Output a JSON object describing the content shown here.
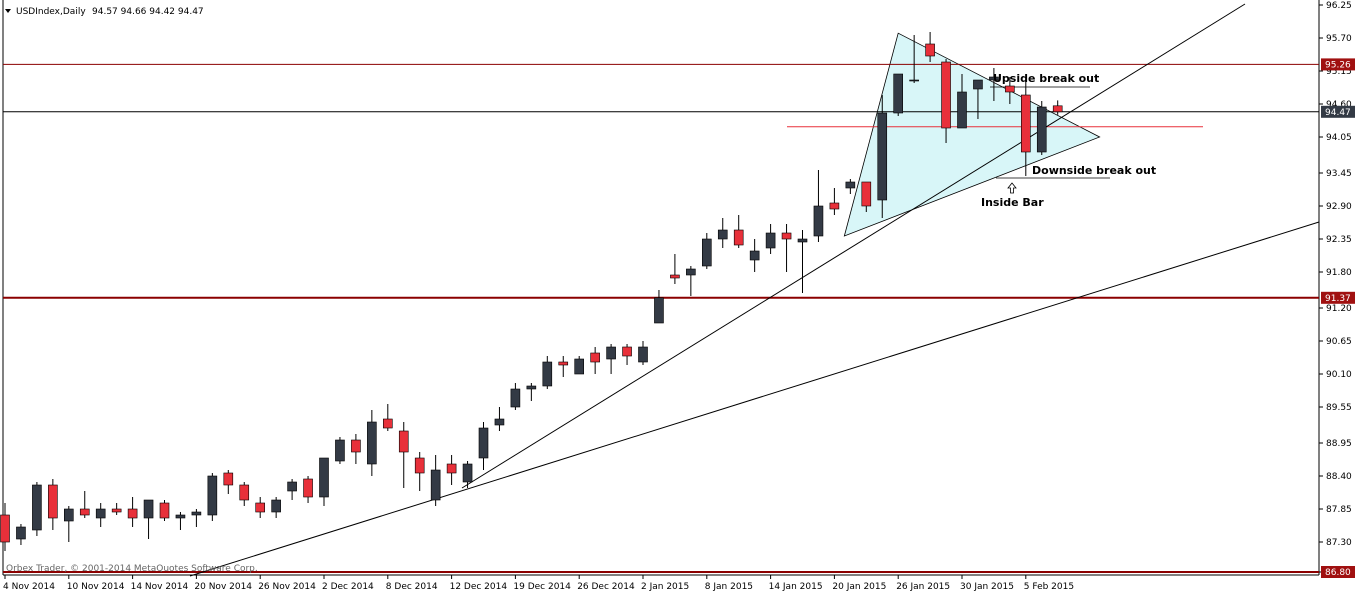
{
  "header": {
    "symbol": "USDIndex,Daily",
    "ohlc": "94.57 94.66 94.42 94.47"
  },
  "copyright": "Orbex Trader, © 2001-2014 MetaQuotes Software Corp.",
  "colors": {
    "bull": "#333a45",
    "bear": "#e8303a",
    "triangle_fill": "#d8f6f8",
    "level_line": "#8b0000",
    "price_label_bg": "#a01010",
    "current_label_bg": "#333a45"
  },
  "chart_data": {
    "type": "candlestick",
    "ylim": [
      86.75,
      96.25
    ],
    "y_ticks": [
      "96.25",
      "95.70",
      "95.15",
      "94.60",
      "94.05",
      "93.45",
      "92.90",
      "92.35",
      "91.80",
      "91.20",
      "90.65",
      "90.10",
      "89.55",
      "88.95",
      "88.40",
      "87.85",
      "87.30",
      "86.80"
    ],
    "x_labels": [
      "4 Nov 2014",
      "10 Nov 2014",
      "14 Nov 2014",
      "20 Nov 2014",
      "26 Nov 2014",
      "2 Dec 2014",
      "8 Dec 2014",
      "12 Dec 2014",
      "19 Dec 2014",
      "26 Dec 2014",
      "2 Jan 2015",
      "8 Jan 2015",
      "14 Jan 2015",
      "20 Jan 2015",
      "26 Jan 2015",
      "30 Jan 2015",
      "5 Feb 2015"
    ],
    "candles": [
      {
        "o": 87.75,
        "h": 87.95,
        "l": 87.15,
        "c": 87.3
      },
      {
        "o": 87.35,
        "h": 87.6,
        "l": 87.25,
        "c": 87.55
      },
      {
        "o": 87.5,
        "h": 88.3,
        "l": 87.4,
        "c": 88.25
      },
      {
        "o": 88.25,
        "h": 88.35,
        "l": 87.5,
        "c": 87.7
      },
      {
        "o": 87.65,
        "h": 87.9,
        "l": 87.3,
        "c": 87.85
      },
      {
        "o": 87.85,
        "h": 88.15,
        "l": 87.7,
        "c": 87.75
      },
      {
        "o": 87.7,
        "h": 87.95,
        "l": 87.55,
        "c": 87.85
      },
      {
        "o": 87.85,
        "h": 87.95,
        "l": 87.75,
        "c": 87.8
      },
      {
        "o": 87.85,
        "h": 88.05,
        "l": 87.55,
        "c": 87.7
      },
      {
        "o": 87.7,
        "h": 88.0,
        "l": 87.35,
        "c": 88.0
      },
      {
        "o": 87.95,
        "h": 88.0,
        "l": 87.65,
        "c": 87.7
      },
      {
        "o": 87.7,
        "h": 87.8,
        "l": 87.5,
        "c": 87.75
      },
      {
        "o": 87.75,
        "h": 87.85,
        "l": 87.55,
        "c": 87.8
      },
      {
        "o": 87.75,
        "h": 88.45,
        "l": 87.65,
        "c": 88.4
      },
      {
        "o": 88.45,
        "h": 88.5,
        "l": 88.1,
        "c": 88.25
      },
      {
        "o": 88.25,
        "h": 88.3,
        "l": 87.9,
        "c": 88.0
      },
      {
        "o": 87.95,
        "h": 88.05,
        "l": 87.7,
        "c": 87.8
      },
      {
        "o": 87.8,
        "h": 88.05,
        "l": 87.7,
        "c": 88.0
      },
      {
        "o": 88.15,
        "h": 88.35,
        "l": 88.0,
        "c": 88.3
      },
      {
        "o": 88.35,
        "h": 88.4,
        "l": 87.95,
        "c": 88.05
      },
      {
        "o": 88.05,
        "h": 88.7,
        "l": 87.9,
        "c": 88.7
      },
      {
        "o": 88.65,
        "h": 89.05,
        "l": 88.6,
        "c": 89.0
      },
      {
        "o": 89.0,
        "h": 89.1,
        "l": 88.6,
        "c": 88.8
      },
      {
        "o": 88.6,
        "h": 89.5,
        "l": 88.4,
        "c": 89.3
      },
      {
        "o": 89.35,
        "h": 89.6,
        "l": 89.15,
        "c": 89.2
      },
      {
        "o": 89.15,
        "h": 89.3,
        "l": 88.2,
        "c": 88.8
      },
      {
        "o": 88.7,
        "h": 88.8,
        "l": 88.15,
        "c": 88.45
      },
      {
        "o": 88.0,
        "h": 88.75,
        "l": 87.9,
        "c": 88.5
      },
      {
        "o": 88.6,
        "h": 88.75,
        "l": 88.25,
        "c": 88.45
      },
      {
        "o": 88.3,
        "h": 88.65,
        "l": 88.2,
        "c": 88.6
      },
      {
        "o": 88.7,
        "h": 89.3,
        "l": 88.5,
        "c": 89.2
      },
      {
        "o": 89.25,
        "h": 89.55,
        "l": 89.15,
        "c": 89.35
      },
      {
        "o": 89.55,
        "h": 89.95,
        "l": 89.5,
        "c": 89.85
      },
      {
        "o": 89.85,
        "h": 89.95,
        "l": 89.65,
        "c": 89.9
      },
      {
        "o": 89.9,
        "h": 90.4,
        "l": 89.85,
        "c": 90.3
      },
      {
        "o": 90.3,
        "h": 90.4,
        "l": 90.05,
        "c": 90.25
      },
      {
        "o": 90.1,
        "h": 90.4,
        "l": 90.1,
        "c": 90.35
      },
      {
        "o": 90.45,
        "h": 90.55,
        "l": 90.1,
        "c": 90.3
      },
      {
        "o": 90.35,
        "h": 90.6,
        "l": 90.1,
        "c": 90.55
      },
      {
        "o": 90.55,
        "h": 90.6,
        "l": 90.25,
        "c": 90.4
      },
      {
        "o": 90.3,
        "h": 90.65,
        "l": 90.25,
        "c": 90.55
      },
      {
        "o": 90.95,
        "h": 91.5,
        "l": 90.95,
        "c": 91.37
      },
      {
        "o": 91.75,
        "h": 92.1,
        "l": 91.6,
        "c": 91.7
      },
      {
        "o": 91.75,
        "h": 91.9,
        "l": 91.4,
        "c": 91.85
      },
      {
        "o": 91.9,
        "h": 92.45,
        "l": 91.85,
        "c": 92.35
      },
      {
        "o": 92.35,
        "h": 92.7,
        "l": 92.2,
        "c": 92.5
      },
      {
        "o": 92.5,
        "h": 92.75,
        "l": 92.2,
        "c": 92.25
      },
      {
        "o": 92.0,
        "h": 92.35,
        "l": 91.8,
        "c": 92.15
      },
      {
        "o": 92.2,
        "h": 92.6,
        "l": 92.1,
        "c": 92.45
      },
      {
        "o": 92.45,
        "h": 92.6,
        "l": 91.8,
        "c": 92.35
      },
      {
        "o": 92.3,
        "h": 92.5,
        "l": 91.45,
        "c": 92.35
      },
      {
        "o": 92.4,
        "h": 93.5,
        "l": 92.3,
        "c": 92.9
      },
      {
        "o": 92.95,
        "h": 93.2,
        "l": 92.75,
        "c": 92.85
      },
      {
        "o": 93.2,
        "h": 93.35,
        "l": 93.1,
        "c": 93.3
      },
      {
        "o": 93.3,
        "h": 93.3,
        "l": 92.8,
        "c": 92.9
      },
      {
        "o": 93.0,
        "h": 94.75,
        "l": 92.7,
        "c": 94.45
      },
      {
        "o": 94.45,
        "h": 95.1,
        "l": 94.4,
        "c": 95.1
      },
      {
        "o": 95.0,
        "h": 95.75,
        "l": 94.95,
        "c": 95.0
      },
      {
        "o": 95.6,
        "h": 95.8,
        "l": 95.3,
        "c": 95.4
      },
      {
        "o": 95.3,
        "h": 95.35,
        "l": 93.95,
        "c": 94.2
      },
      {
        "o": 94.2,
        "h": 95.1,
        "l": 94.2,
        "c": 94.8
      },
      {
        "o": 94.85,
        "h": 95.0,
        "l": 94.35,
        "c": 95.0
      },
      {
        "o": 95.0,
        "h": 95.2,
        "l": 94.65,
        "c": 95.05
      },
      {
        "o": 94.9,
        "h": 95.05,
        "l": 94.6,
        "c": 94.8
      },
      {
        "o": 94.75,
        "h": 95.0,
        "l": 93.4,
        "c": 93.8
      },
      {
        "o": 93.8,
        "h": 94.65,
        "l": 93.75,
        "c": 94.55
      },
      {
        "o": 94.57,
        "h": 94.66,
        "l": 94.42,
        "c": 94.47
      }
    ],
    "levels": [
      {
        "price": 95.26,
        "label": "95.26"
      },
      {
        "price": 94.47,
        "label": "94.47"
      },
      {
        "price": 91.37,
        "label": "91.37"
      },
      {
        "price": 86.8,
        "label": "86.80"
      }
    ],
    "annotations": {
      "upside": "Upside break out",
      "downside": "Downside break out",
      "inside_bar": "Inside Bar"
    }
  }
}
